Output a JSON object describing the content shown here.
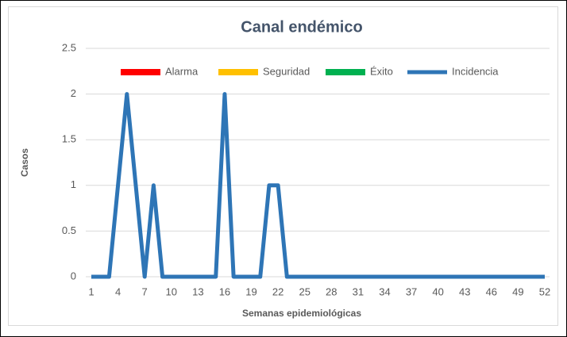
{
  "chart_data": {
    "type": "line",
    "title": "Canal endémico",
    "x_label": "Semanas epidemiológicas",
    "y_label": "Casos",
    "x": [
      1,
      2,
      3,
      4,
      5,
      6,
      7,
      8,
      9,
      10,
      11,
      12,
      13,
      14,
      15,
      16,
      17,
      18,
      19,
      20,
      21,
      22,
      23,
      24,
      25,
      26,
      27,
      28,
      29,
      30,
      31,
      32,
      33,
      34,
      35,
      36,
      37,
      38,
      39,
      40,
      41,
      42,
      43,
      44,
      45,
      46,
      47,
      48,
      49,
      50,
      51,
      52
    ],
    "xlim": [
      1,
      52
    ],
    "xticks": [
      1,
      4,
      7,
      10,
      13,
      16,
      19,
      22,
      25,
      28,
      31,
      34,
      37,
      40,
      43,
      46,
      49,
      52
    ],
    "ylim": [
      0,
      2.5
    ],
    "yticks": [
      0,
      0.5,
      1,
      1.5,
      2,
      2.5
    ],
    "grid": true,
    "legend": "top",
    "series": [
      {
        "name": "Alarma",
        "color": "#ff0000",
        "values": [
          null,
          null,
          null,
          null,
          null,
          null,
          null,
          null,
          null,
          null,
          null,
          null,
          null,
          null,
          null,
          null,
          null,
          null,
          null,
          null,
          null,
          null,
          null,
          null,
          null,
          null,
          null,
          null,
          null,
          null,
          null,
          null,
          null,
          null,
          null,
          null,
          null,
          null,
          null,
          null,
          null,
          null,
          null,
          null,
          null,
          null,
          null,
          null,
          null,
          null,
          null,
          null
        ]
      },
      {
        "name": "Seguridad",
        "color": "#ffc000",
        "values": [
          null,
          null,
          null,
          null,
          null,
          null,
          null,
          null,
          null,
          null,
          null,
          null,
          null,
          null,
          null,
          null,
          null,
          null,
          null,
          null,
          null,
          null,
          null,
          null,
          null,
          null,
          null,
          null,
          null,
          null,
          null,
          null,
          null,
          null,
          null,
          null,
          null,
          null,
          null,
          null,
          null,
          null,
          null,
          null,
          null,
          null,
          null,
          null,
          null,
          null,
          null,
          null
        ]
      },
      {
        "name": "Éxito",
        "color": "#00b050",
        "values": [
          null,
          null,
          null,
          null,
          null,
          null,
          null,
          null,
          null,
          null,
          null,
          null,
          null,
          null,
          null,
          null,
          null,
          null,
          null,
          null,
          null,
          null,
          null,
          null,
          null,
          null,
          null,
          null,
          null,
          null,
          null,
          null,
          null,
          null,
          null,
          null,
          null,
          null,
          null,
          null,
          null,
          null,
          null,
          null,
          null,
          null,
          null,
          null,
          null,
          null,
          null,
          null
        ]
      },
      {
        "name": "Incidencia",
        "color": "#2e75b6",
        "values": [
          0,
          0,
          0,
          1,
          2,
          1,
          0,
          1,
          0,
          0,
          0,
          0,
          0,
          0,
          0,
          2,
          0,
          0,
          0,
          0,
          1,
          1,
          0,
          0,
          0,
          0,
          0,
          0,
          0,
          0,
          0,
          0,
          0,
          0,
          0,
          0,
          0,
          0,
          0,
          0,
          0,
          0,
          0,
          0,
          0,
          0,
          0,
          0,
          0,
          0,
          0,
          0
        ]
      }
    ]
  }
}
